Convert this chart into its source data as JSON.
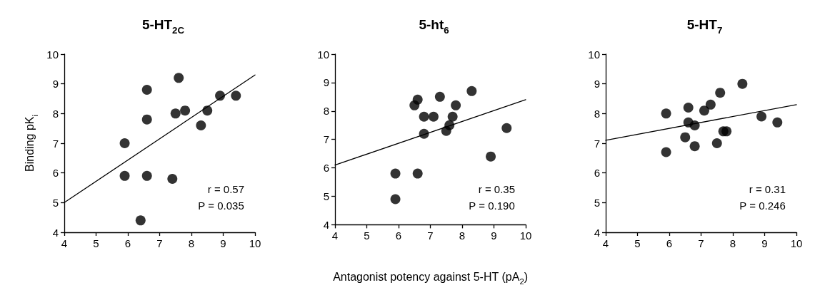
{
  "chart_data": [
    {
      "type": "scatter",
      "title": "5-HT$_{2C}$",
      "ylabel": "Binding pK$_{i}$",
      "xlim": [
        4,
        10
      ],
      "ylim": [
        4,
        10
      ],
      "xticks": [
        4,
        5,
        6,
        7,
        8,
        9,
        10
      ],
      "yticks": [
        4,
        5,
        6,
        7,
        8,
        9,
        10
      ],
      "grid": false,
      "marker": "circle",
      "annotations": [
        "r = 0.57",
        "P = 0.035"
      ],
      "series": [
        {
          "color": "#000000",
          "x": [
            5.9,
            5.9,
            6.4,
            6.6,
            6.6,
            6.6,
            7.4,
            7.5,
            7.6,
            7.8,
            8.3,
            8.5,
            8.9,
            9.4
          ],
          "values": [
            7.0,
            5.9,
            4.4,
            8.8,
            7.8,
            5.9,
            5.8,
            8.0,
            9.2,
            8.1,
            7.6,
            8.1,
            8.6,
            8.6
          ]
        },
        {
          "type": "line",
          "color": "#000000",
          "x": [
            4,
            10
          ],
          "values": [
            5.0,
            9.3
          ],
          "line_style": "solid",
          "marker": "none"
        }
      ]
    },
    {
      "type": "scatter",
      "title": "5-ht$_{6}$",
      "xlabel": "Antagonist potency against 5-HT (pA$_{2}$)",
      "xlim": [
        4,
        10
      ],
      "ylim": [
        4,
        10
      ],
      "xticks": [
        4,
        5,
        6,
        7,
        8,
        9,
        10
      ],
      "yticks": [
        4,
        5,
        6,
        7,
        8,
        9,
        10
      ],
      "grid": false,
      "marker": "circle",
      "annotations": [
        "r = 0.35",
        "P = 0.190"
      ],
      "series": [
        {
          "color": "#000000",
          "x": [
            5.9,
            5.9,
            6.5,
            6.6,
            6.6,
            6.8,
            6.8,
            7.1,
            7.3,
            7.5,
            7.6,
            7.7,
            7.8,
            8.3,
            8.9,
            9.4
          ],
          "values": [
            5.8,
            4.9,
            8.2,
            8.4,
            5.8,
            7.8,
            7.2,
            7.8,
            8.5,
            7.3,
            7.5,
            7.8,
            8.2,
            8.7,
            6.4,
            7.4
          ]
        },
        {
          "type": "line",
          "color": "#000000",
          "x": [
            4,
            10
          ],
          "values": [
            6.1,
            8.4
          ],
          "line_style": "solid",
          "marker": "none"
        }
      ]
    },
    {
      "type": "scatter",
      "title": "5-HT$_{7}$",
      "xlim": [
        4,
        10
      ],
      "ylim": [
        4,
        10
      ],
      "xticks": [
        4,
        5,
        6,
        7,
        8,
        9,
        10
      ],
      "yticks": [
        4,
        5,
        6,
        7,
        8,
        9,
        10
      ],
      "grid": false,
      "marker": "circle",
      "annotations": [
        "r = 0.31",
        "P = 0.246"
      ],
      "series": [
        {
          "color": "#000000",
          "x": [
            5.9,
            5.9,
            6.5,
            6.6,
            6.6,
            6.8,
            6.8,
            7.1,
            7.3,
            7.5,
            7.6,
            7.7,
            7.8,
            8.3,
            8.9,
            9.4
          ],
          "values": [
            8.0,
            6.7,
            7.2,
            8.2,
            7.7,
            7.6,
            6.9,
            8.1,
            8.3,
            7.0,
            8.7,
            7.4,
            7.4,
            9.0,
            7.9,
            7.7
          ]
        },
        {
          "type": "line",
          "color": "#000000",
          "x": [
            4,
            10
          ],
          "values": [
            7.1,
            8.3
          ],
          "line_style": "solid",
          "marker": "none"
        }
      ]
    }
  ]
}
